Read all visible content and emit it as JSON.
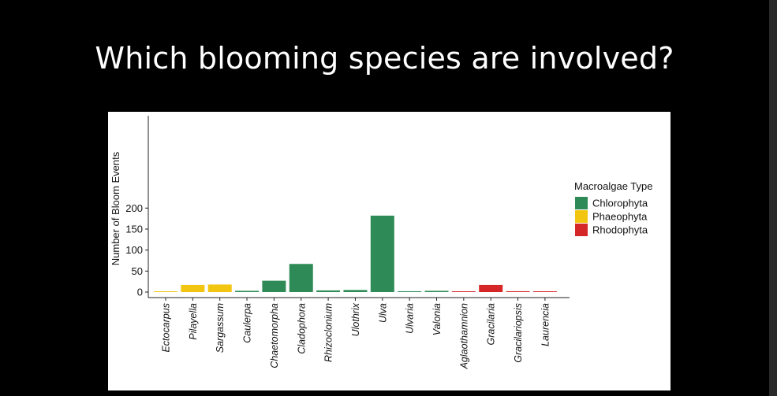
{
  "slide": {
    "title": "Which blooming species are involved?"
  },
  "chart_data": {
    "type": "bar",
    "ylabel": "Number of Bloom Events",
    "xlabel": "",
    "ylim": [
      0,
      210
    ],
    "yticks": [
      "0",
      "50",
      "100",
      "150",
      "200"
    ],
    "ytick_values": [
      0,
      50,
      100,
      150,
      200
    ],
    "grid": false,
    "legend_placement": "right",
    "legend_title": "Macroalgae Type",
    "groups": [
      {
        "name": "Chlorophyta",
        "color": "#2e8b57"
      },
      {
        "name": "Phaeophyta",
        "color": "#f2c511"
      },
      {
        "name": "Rhodophyta",
        "color": "#d62728"
      }
    ],
    "categories": [
      "Ectocarpus",
      "Pilayella",
      "Sargassum",
      "Caulerpa",
      "Chaetomorpha",
      "Cladophora",
      "Rhizoclonium",
      "Ulothrix",
      "Ulva",
      "Ulvaria",
      "Valonia",
      "Aglaothamnion",
      "Gracilaria",
      "Gracilariopsis",
      "Laurencia"
    ],
    "values": [
      1,
      17,
      18,
      3,
      27,
      67,
      4,
      5,
      182,
      2,
      3,
      1,
      17,
      2,
      1
    ],
    "category_group": [
      "Phaeophyta",
      "Phaeophyta",
      "Phaeophyta",
      "Chlorophyta",
      "Chlorophyta",
      "Chlorophyta",
      "Chlorophyta",
      "Chlorophyta",
      "Chlorophyta",
      "Chlorophyta",
      "Chlorophyta",
      "Rhodophyta",
      "Rhodophyta",
      "Rhodophyta",
      "Rhodophyta"
    ]
  }
}
